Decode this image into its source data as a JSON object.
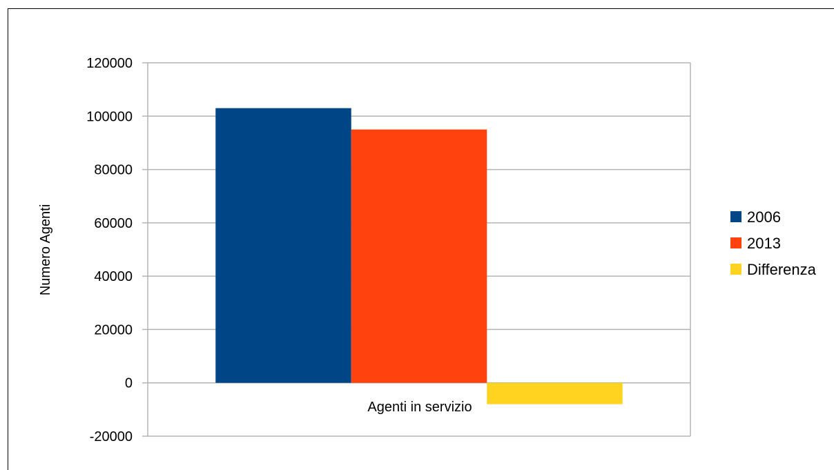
{
  "chart_data": {
    "type": "bar",
    "categories": [
      "Agenti in servizio"
    ],
    "series": [
      {
        "name": "2006",
        "values": [
          103000
        ],
        "color": "#004586"
      },
      {
        "name": "2013",
        "values": [
          95000
        ],
        "color": "#ff420e"
      },
      {
        "name": "Differenza",
        "values": [
          -8000
        ],
        "color": "#ffd320"
      }
    ],
    "title": "",
    "xlabel": "",
    "ylabel": "Numero Agenti",
    "ylim": [
      -20000,
      120000
    ],
    "yticks": [
      -20000,
      0,
      20000,
      40000,
      60000,
      80000,
      100000,
      120000
    ],
    "ytick_labels": [
      "-20000",
      "0",
      "20000",
      "40000",
      "60000",
      "80000",
      "100000",
      "120000"
    ],
    "grid": true,
    "legend_position": "right"
  }
}
